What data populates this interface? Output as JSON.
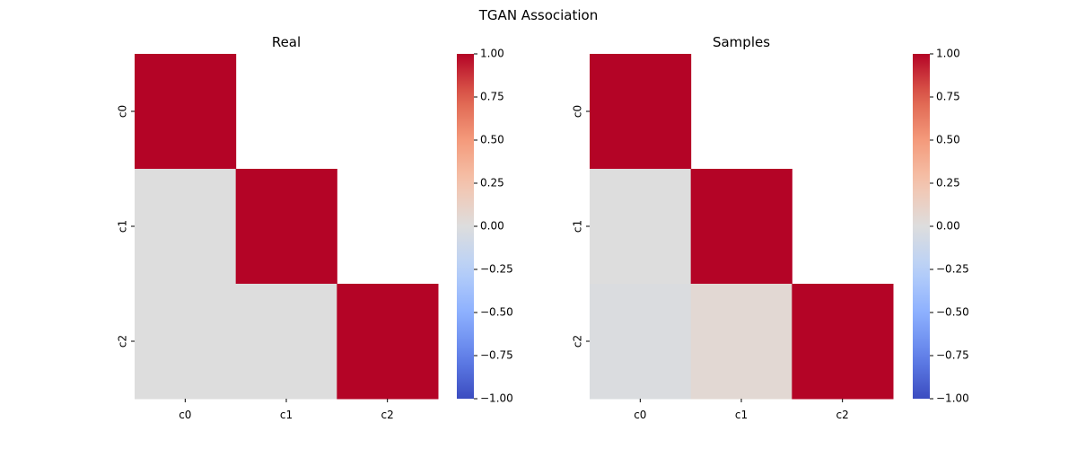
{
  "figure": {
    "title": "TGAN Association"
  },
  "chart_data": [
    {
      "type": "heatmap",
      "title": "Real",
      "rows": [
        "c0",
        "c1",
        "c2"
      ],
      "cols": [
        "c0",
        "c1",
        "c2"
      ],
      "values": [
        [
          1.0,
          null,
          null
        ],
        [
          0.0,
          1.0,
          null
        ],
        [
          0.0,
          0.0,
          1.0
        ]
      ],
      "colormap": "coolwarm",
      "vmin": -1.0,
      "vmax": 1.0,
      "colorbar_ticks": [
        "1.00",
        "0.75",
        "0.50",
        "0.25",
        "0.00",
        "−0.25",
        "−0.50",
        "−0.75",
        "−1.00"
      ]
    },
    {
      "type": "heatmap",
      "title": "Samples",
      "rows": [
        "c0",
        "c1",
        "c2"
      ],
      "cols": [
        "c0",
        "c1",
        "c2"
      ],
      "values": [
        [
          1.0,
          null,
          null
        ],
        [
          0.0,
          1.0,
          null
        ],
        [
          -0.02,
          0.05,
          1.0
        ]
      ],
      "colormap": "coolwarm",
      "vmin": -1.0,
      "vmax": 1.0,
      "colorbar_ticks": [
        "1.00",
        "0.75",
        "0.50",
        "0.25",
        "0.00",
        "−0.25",
        "−0.50",
        "−0.75",
        "−1.00"
      ]
    }
  ]
}
